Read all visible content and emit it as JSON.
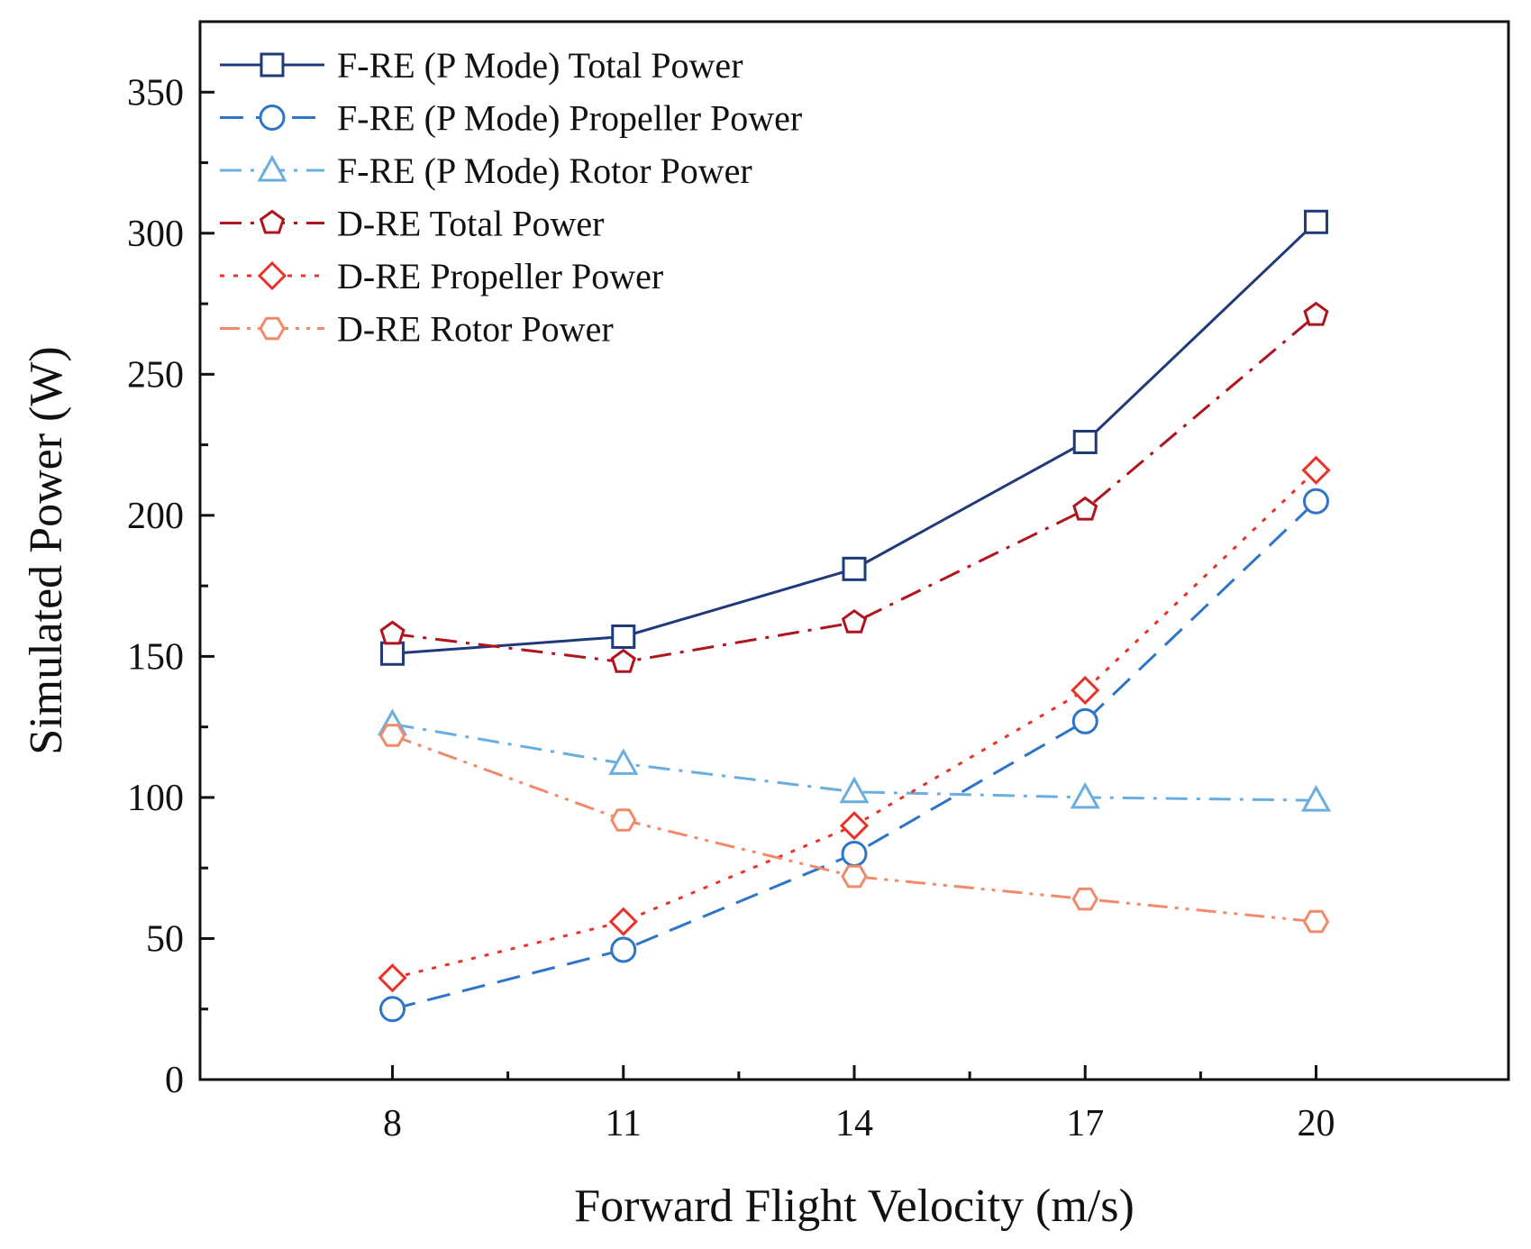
{
  "chart_data": {
    "type": "line",
    "title": "",
    "xlabel": "Forward Flight Velocity (m/s)",
    "ylabel": "Simulated Power (W)",
    "xlim": [
      5.5,
      22.5
    ],
    "ylim": [
      0,
      375
    ],
    "xticks": [
      8,
      11,
      14,
      17,
      20
    ],
    "xtick_labels": [
      "8",
      "11",
      "14",
      "17",
      "20"
    ],
    "yticks": [
      0,
      50,
      100,
      150,
      200,
      250,
      300,
      350
    ],
    "ytick_labels": [
      "0",
      "50",
      "100",
      "150",
      "200",
      "250",
      "300",
      "350"
    ],
    "grid": false,
    "legend_position": "top-left",
    "x": [
      8,
      11,
      14,
      17,
      20
    ],
    "series": [
      {
        "name": "F-RE (P Mode) Total Power",
        "values": [
          151,
          157,
          181,
          226,
          304
        ],
        "color": "#1f3a7a",
        "marker": "square",
        "dash": "solid"
      },
      {
        "name": "F-RE (P Mode) Propeller Power",
        "values": [
          25,
          46,
          80,
          127,
          205
        ],
        "color": "#2e75c9",
        "marker": "circle",
        "dash": "dash"
      },
      {
        "name": "F-RE (P Mode) Rotor Power",
        "values": [
          126,
          112,
          102,
          100,
          99
        ],
        "color": "#6aaee0",
        "marker": "triangle",
        "dash": "dashdot"
      },
      {
        "name": "D-RE Total Power",
        "values": [
          158,
          148,
          162,
          202,
          271
        ],
        "color": "#b0141d",
        "marker": "pentagon",
        "dash": "dashdot"
      },
      {
        "name": "D-RE Propeller Power",
        "values": [
          36,
          56,
          90,
          138,
          216
        ],
        "color": "#e8322a",
        "marker": "diamond",
        "dash": "dot"
      },
      {
        "name": "D-RE Rotor Power",
        "values": [
          122,
          92,
          72,
          64,
          56
        ],
        "color": "#f08a6a",
        "marker": "hexagon",
        "dash": "dashdotdot"
      }
    ]
  }
}
